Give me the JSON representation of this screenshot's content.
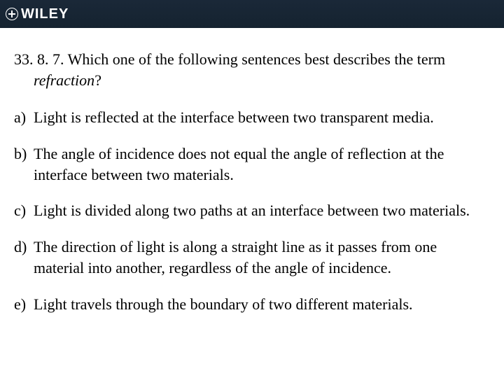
{
  "header": {
    "brand": "WILEY"
  },
  "question": {
    "number": "33. 8. 7.",
    "stem_before_term": "Which one of the following sentences best describes the term",
    "term": "refraction",
    "stem_after_term": "?"
  },
  "options": {
    "a": {
      "letter": "a)",
      "text": "Light is reflected at the interface between two transparent media."
    },
    "b": {
      "letter": "b)",
      "text": "The angle of incidence does not equal the angle of reflection at the interface between two materials."
    },
    "c": {
      "letter": "c)",
      "text": "Light is divided along two paths at an interface between two materials."
    },
    "d": {
      "letter": "d)",
      "text": "The direction of light is along a straight line as it passes from one material into another, regardless of the angle of incidence."
    },
    "e": {
      "letter": "e)",
      "text": "Light travels through the boundary of two different materials."
    }
  },
  "colors": {
    "header_bg": "#152330",
    "header_text": "#ffffff",
    "body_bg": "#ffffff",
    "body_text": "#000000"
  }
}
